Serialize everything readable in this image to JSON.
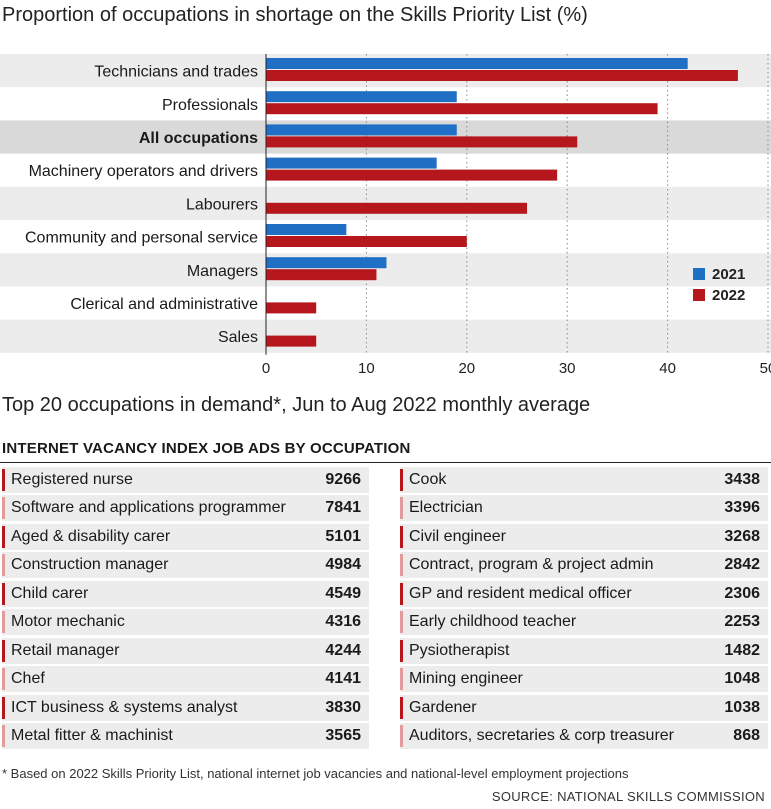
{
  "chart_data": {
    "type": "bar",
    "title": "Proportion of occupations in shortage on the Skills Priority List (%)",
    "categories": [
      "Technicians and trades",
      "Professionals",
      "All occupations",
      "Machinery operators and drivers",
      "Labourers",
      "Community and personal service",
      "Managers",
      "Clerical and administrative",
      "Sales"
    ],
    "highlighted_category": "All occupations",
    "series": [
      {
        "name": "2021",
        "color": "#1f6fc5",
        "values": [
          42,
          19,
          19,
          17,
          0,
          8,
          12,
          0,
          0
        ]
      },
      {
        "name": "2022",
        "color": "#b5171c",
        "values": [
          47,
          39,
          31,
          29,
          26,
          20,
          11,
          5,
          5
        ]
      }
    ],
    "xticks": [
      0,
      10,
      20,
      30,
      40,
      50
    ],
    "xlim": [
      0,
      50
    ],
    "orientation": "horizontal",
    "grid": "vertical dotted",
    "legend": "bottom-right"
  },
  "subtitle": "Top 20 occupations in demand*, Jun to Aug 2022 monthly average",
  "table_heading": "INTERNET VACANCY INDEX JOB ADS BY OCCUPATION",
  "mark_colors": {
    "dark": "#b5171c",
    "light": "#e39a9a"
  },
  "occupations_left": [
    {
      "name": "Registered nurse",
      "value": "9266"
    },
    {
      "name": "Software and applications programmer",
      "value": "7841"
    },
    {
      "name": "Aged & disability carer",
      "value": "5101"
    },
    {
      "name": "Construction manager",
      "value": "4984"
    },
    {
      "name": "Child carer",
      "value": "4549"
    },
    {
      "name": "Motor mechanic",
      "value": "4316"
    },
    {
      "name": "Retail manager",
      "value": "4244"
    },
    {
      "name": "Chef",
      "value": "4141"
    },
    {
      "name": "ICT business & systems analyst",
      "value": "3830"
    },
    {
      "name": "Metal fitter & machinist",
      "value": "3565"
    }
  ],
  "occupations_right": [
    {
      "name": "Cook",
      "value": "3438"
    },
    {
      "name": "Electrician",
      "value": "3396"
    },
    {
      "name": "Civil engineer",
      "value": "3268"
    },
    {
      "name": "Contract, program & project admin",
      "value": "2842"
    },
    {
      "name": "GP and resident medical officer",
      "value": "2306"
    },
    {
      "name": "Early childhood teacher",
      "value": "2253"
    },
    {
      "name": "Pysiotherapist",
      "value": "1482"
    },
    {
      "name": "Mining engineer",
      "value": "1048"
    },
    {
      "name": "Gardener",
      "value": "1038"
    },
    {
      "name": "Auditors, secretaries & corp treasurer",
      "value": "868"
    }
  ],
  "footnote": "* Based on 2022 Skills Priority List, national internet job vacancies and national-level employment projections",
  "source": "SOURCE: NATIONAL SKILLS COMMISSION"
}
